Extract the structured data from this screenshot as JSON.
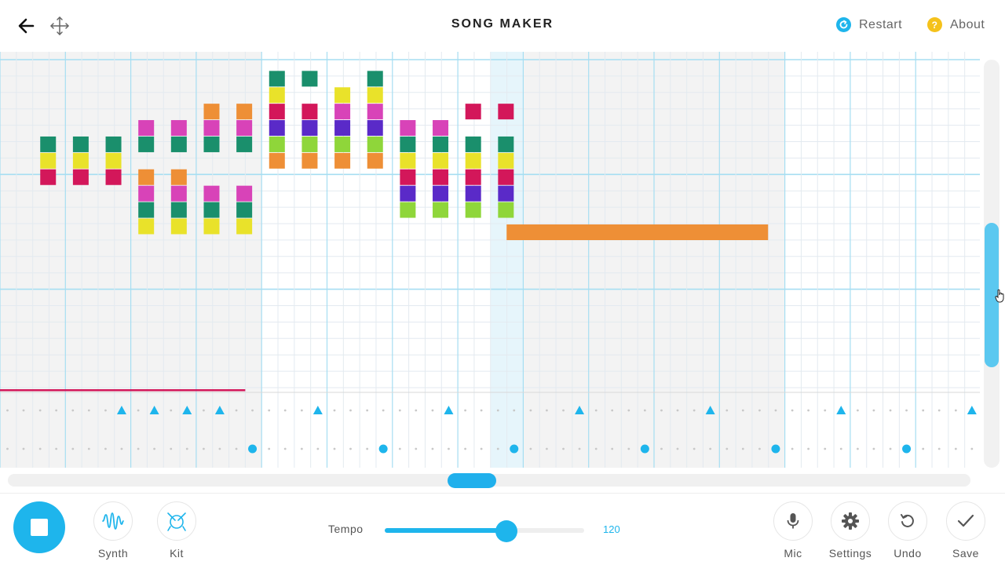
{
  "header": {
    "title": "SONG MAKER",
    "restart_label": "Restart",
    "about_label": "About",
    "about_icon_glyph": "?",
    "restart_color": "#1eb5ec",
    "about_color": "#f5c21b"
  },
  "grid": {
    "bars": 3,
    "beats_per_bar": 4,
    "split_beats": 4,
    "scroll_steps": 30,
    "rows": 32,
    "highlighted_step": 15,
    "gray_step_ranges": [
      [
        0,
        7
      ],
      [
        15,
        23
      ]
    ],
    "colors": {
      "green": "#1a8f6c",
      "yellow": "#e9e22a",
      "red": "#d3175a",
      "pink": "#d843b8",
      "orange": "#ee8f36",
      "purple": "#5a2ac8",
      "lime": "#8fd63a",
      "grid_line": "#e3eaf0",
      "beat_line": "#a6def2",
      "highlight": "#e6f5fb"
    },
    "notes": [
      {
        "step": 1,
        "row": 5,
        "color": "green"
      },
      {
        "step": 1,
        "row": 6,
        "color": "yellow"
      },
      {
        "step": 1,
        "row": 7,
        "color": "red"
      },
      {
        "step": 3,
        "row": 5,
        "color": "green"
      },
      {
        "step": 3,
        "row": 6,
        "color": "yellow"
      },
      {
        "step": 3,
        "row": 7,
        "color": "red"
      },
      {
        "step": 5,
        "row": 5,
        "color": "green"
      },
      {
        "step": 5,
        "row": 6,
        "color": "yellow"
      },
      {
        "step": 5,
        "row": 7,
        "color": "red"
      },
      {
        "step": 7,
        "row": 4,
        "color": "pink"
      },
      {
        "step": 7,
        "row": 5,
        "color": "green"
      },
      {
        "step": 7,
        "row": 7,
        "color": "orange"
      },
      {
        "step": 7,
        "row": 8,
        "color": "pink"
      },
      {
        "step": 7,
        "row": 9,
        "color": "green"
      },
      {
        "step": 7,
        "row": 10,
        "color": "yellow"
      },
      {
        "step": 9,
        "row": 4,
        "color": "pink"
      },
      {
        "step": 9,
        "row": 5,
        "color": "green"
      },
      {
        "step": 9,
        "row": 7,
        "color": "orange"
      },
      {
        "step": 9,
        "row": 8,
        "color": "pink"
      },
      {
        "step": 9,
        "row": 9,
        "color": "green"
      },
      {
        "step": 9,
        "row": 10,
        "color": "yellow"
      },
      {
        "step": 11,
        "row": 3,
        "color": "orange"
      },
      {
        "step": 11,
        "row": 4,
        "color": "pink"
      },
      {
        "step": 11,
        "row": 5,
        "color": "green"
      },
      {
        "step": 11,
        "row": 8,
        "color": "pink"
      },
      {
        "step": 11,
        "row": 9,
        "color": "green"
      },
      {
        "step": 11,
        "row": 10,
        "color": "yellow"
      },
      {
        "step": 13,
        "row": 3,
        "color": "orange"
      },
      {
        "step": 13,
        "row": 4,
        "color": "pink"
      },
      {
        "step": 13,
        "row": 5,
        "color": "green"
      },
      {
        "step": 13,
        "row": 8,
        "color": "pink"
      },
      {
        "step": 13,
        "row": 9,
        "color": "green"
      },
      {
        "step": 13,
        "row": 10,
        "color": "yellow"
      },
      {
        "step": 15,
        "row": 1,
        "color": "green"
      },
      {
        "step": 15,
        "row": 2,
        "color": "yellow"
      },
      {
        "step": 15,
        "row": 3,
        "color": "red"
      },
      {
        "step": 15,
        "row": 4,
        "color": "purple"
      },
      {
        "step": 15,
        "row": 5,
        "color": "lime"
      },
      {
        "step": 15,
        "row": 6,
        "color": "orange"
      },
      {
        "step": 17,
        "row": 1,
        "color": "green"
      },
      {
        "step": 17,
        "row": 3,
        "color": "red"
      },
      {
        "step": 17,
        "row": 4,
        "color": "purple"
      },
      {
        "step": 17,
        "row": 5,
        "color": "lime"
      },
      {
        "step": 17,
        "row": 6,
        "color": "orange"
      },
      {
        "step": 19,
        "row": 2,
        "color": "yellow"
      },
      {
        "step": 19,
        "row": 3,
        "color": "pink"
      },
      {
        "step": 19,
        "row": 4,
        "color": "purple"
      },
      {
        "step": 19,
        "row": 5,
        "color": "lime"
      },
      {
        "step": 19,
        "row": 6,
        "color": "orange"
      },
      {
        "step": 21,
        "row": 1,
        "color": "green"
      },
      {
        "step": 21,
        "row": 2,
        "color": "yellow"
      },
      {
        "step": 21,
        "row": 3,
        "color": "pink"
      },
      {
        "step": 21,
        "row": 4,
        "color": "purple"
      },
      {
        "step": 21,
        "row": 5,
        "color": "lime"
      },
      {
        "step": 21,
        "row": 6,
        "color": "orange"
      },
      {
        "step": 23,
        "row": 4,
        "color": "pink"
      },
      {
        "step": 23,
        "row": 5,
        "color": "green"
      },
      {
        "step": 23,
        "row": 6,
        "color": "yellow"
      },
      {
        "step": 23,
        "row": 7,
        "color": "red"
      },
      {
        "step": 23,
        "row": 8,
        "color": "purple"
      },
      {
        "step": 23,
        "row": 9,
        "color": "lime"
      },
      {
        "step": 25,
        "row": 4,
        "color": "pink"
      },
      {
        "step": 25,
        "row": 5,
        "color": "green"
      },
      {
        "step": 25,
        "row": 6,
        "color": "yellow"
      },
      {
        "step": 25,
        "row": 7,
        "color": "red"
      },
      {
        "step": 25,
        "row": 8,
        "color": "purple"
      },
      {
        "step": 25,
        "row": 9,
        "color": "lime"
      },
      {
        "step": 27,
        "row": 3,
        "color": "red"
      },
      {
        "step": 27,
        "row": 5,
        "color": "green"
      },
      {
        "step": 27,
        "row": 6,
        "color": "yellow"
      },
      {
        "step": 27,
        "row": 7,
        "color": "red"
      },
      {
        "step": 27,
        "row": 8,
        "color": "purple"
      },
      {
        "step": 27,
        "row": 9,
        "color": "lime"
      },
      {
        "step": 29,
        "row": 3,
        "color": "red"
      },
      {
        "step": 29,
        "row": 5,
        "color": "green"
      },
      {
        "step": 29,
        "row": 6,
        "color": "yellow"
      },
      {
        "step": 29,
        "row": 7,
        "color": "red"
      },
      {
        "step": 29,
        "row": 8,
        "color": "purple"
      },
      {
        "step": 29,
        "row": 9,
        "color": "lime"
      }
    ],
    "long_notes": [
      {
        "start_step": 15,
        "end_step": 23,
        "row": 10,
        "color": "orange"
      }
    ],
    "red_line": {
      "start_step": 0,
      "end_step": 7,
      "color": "#d3175a"
    }
  },
  "percussion": {
    "triangle_steps": [
      3,
      4,
      5,
      6,
      9,
      13,
      17,
      21,
      25,
      29
    ],
    "circle_steps": [
      7,
      11,
      15,
      19,
      23,
      27
    ],
    "color": "#1eb5ec"
  },
  "bottom": {
    "stop_label": "",
    "synth_label": "Synth",
    "kit_label": "Kit",
    "tempo_label": "Tempo",
    "tempo_value": "120",
    "tempo_fraction": 0.61,
    "mic_label": "Mic",
    "settings_label": "Settings",
    "undo_label": "Undo",
    "save_label": "Save"
  },
  "icons": {
    "back": "arrow-left-icon",
    "move": "move-arrows-icon",
    "restart": "restart-icon",
    "about": "question-icon",
    "stop": "stop-icon",
    "synth": "waveform-icon",
    "kit": "drum-icon",
    "mic": "microphone-icon",
    "settings": "gear-icon",
    "undo": "undo-icon",
    "save": "checkmark-icon"
  }
}
